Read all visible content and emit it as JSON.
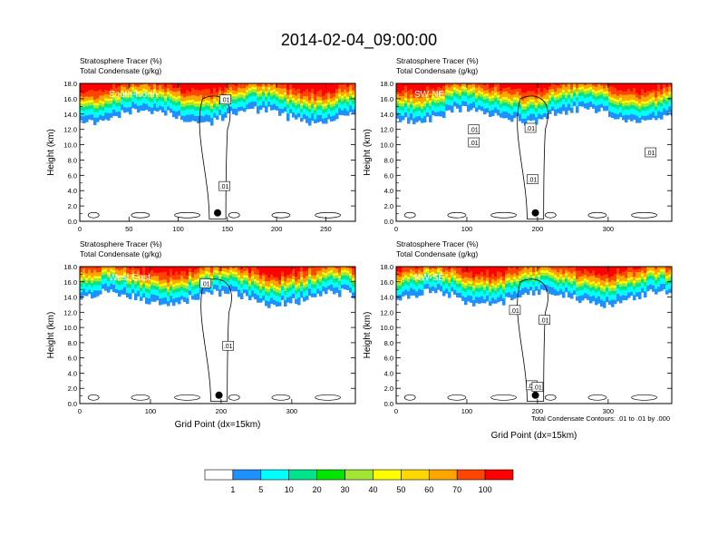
{
  "title": "2014-02-04_09:00:00",
  "chart_data": [
    {
      "type": "heatmap",
      "label": "South-North",
      "variable_1": "Stratosphere Tracer   (%)",
      "variable_2": "Total Condensate   (g/kg)",
      "ylabel": "Height (km)",
      "xlabel": "",
      "xlim": [
        0,
        280
      ],
      "ylim": [
        0,
        18
      ],
      "xticks": [
        0,
        50,
        100,
        150,
        200,
        250
      ],
      "yticks": [
        0,
        2,
        4,
        6,
        8,
        10,
        12,
        14,
        16,
        18
      ],
      "contour_labels": [
        {
          "text": ".01",
          "x": 148,
          "y": 15.9
        },
        {
          "text": ".01",
          "x": 147,
          "y": 4.6
        }
      ],
      "marker": {
        "x": 140,
        "y": 1.1
      }
    },
    {
      "type": "heatmap",
      "label": "SW-NE",
      "variable_1": "Stratosphere Tracer   (%)",
      "variable_2": "Total Condensate   (g/kg)",
      "ylabel": "Height (km)",
      "xlabel": "",
      "xlim": [
        0,
        390
      ],
      "ylim": [
        0,
        18
      ],
      "xticks": [
        0,
        100,
        200,
        300
      ],
      "yticks": [
        0,
        2,
        4,
        6,
        8,
        10,
        12,
        14,
        16,
        18
      ],
      "contour_labels": [
        {
          "text": ".01",
          "x": 110,
          "y": 12.0
        },
        {
          "text": ".01",
          "x": 110,
          "y": 10.3
        },
        {
          "text": ".01",
          "x": 190,
          "y": 12.2
        },
        {
          "text": ".01",
          "x": 193,
          "y": 5.5
        },
        {
          "text": ".01",
          "x": 360,
          "y": 9.0
        }
      ],
      "marker": {
        "x": 197,
        "y": 1.1
      }
    },
    {
      "type": "heatmap",
      "label": "West-East",
      "variable_1": "Stratosphere Tracer   (%)",
      "variable_2": "Total Condensate   (g/kg)",
      "ylabel": "Height (km)",
      "xlabel": "Grid Point (dx=15km)",
      "xlim": [
        0,
        390
      ],
      "ylim": [
        0,
        18
      ],
      "xticks": [
        0,
        100,
        200,
        300
      ],
      "yticks": [
        0,
        2,
        4,
        6,
        8,
        10,
        12,
        14,
        16,
        18
      ],
      "contour_labels": [
        {
          "text": ".01",
          "x": 178,
          "y": 15.8
        },
        {
          "text": ".01",
          "x": 210,
          "y": 7.6
        }
      ],
      "marker": {
        "x": 197,
        "y": 1.1
      }
    },
    {
      "type": "heatmap",
      "label": "NW-SE",
      "variable_1": "Stratosphere Tracer   (%)",
      "variable_2": "Total Condensate   (g/kg)",
      "ylabel": "Height (km)",
      "xlabel": "Grid Point (dx=15km)",
      "xlim": [
        0,
        390
      ],
      "ylim": [
        0,
        18
      ],
      "xticks": [
        0,
        100,
        200,
        300
      ],
      "yticks": [
        0,
        2,
        4,
        6,
        8,
        10,
        12,
        14,
        16,
        18
      ],
      "contour_labels": [
        {
          "text": ".01",
          "x": 168,
          "y": 12.3
        },
        {
          "text": ".01",
          "x": 210,
          "y": 11.0
        },
        {
          "text": ".01",
          "x": 192,
          "y": 2.4
        },
        {
          "text": ".01",
          "x": 200,
          "y": 2.2
        }
      ],
      "marker": {
        "x": 197,
        "y": 1.1
      },
      "contour_info": "Total Condensate Contours: .01 to .01 by .000"
    }
  ],
  "colorbar": {
    "labels": [
      "1",
      "5",
      "10",
      "20",
      "30",
      "40",
      "50",
      "60",
      "70",
      "100"
    ],
    "colors": [
      "#ffffff",
      "#1e90ff",
      "#00ffff",
      "#00e58c",
      "#00e600",
      "#a0e632",
      "#ffff00",
      "#ffd700",
      "#ffa500",
      "#ff4500",
      "#ff0000"
    ]
  }
}
